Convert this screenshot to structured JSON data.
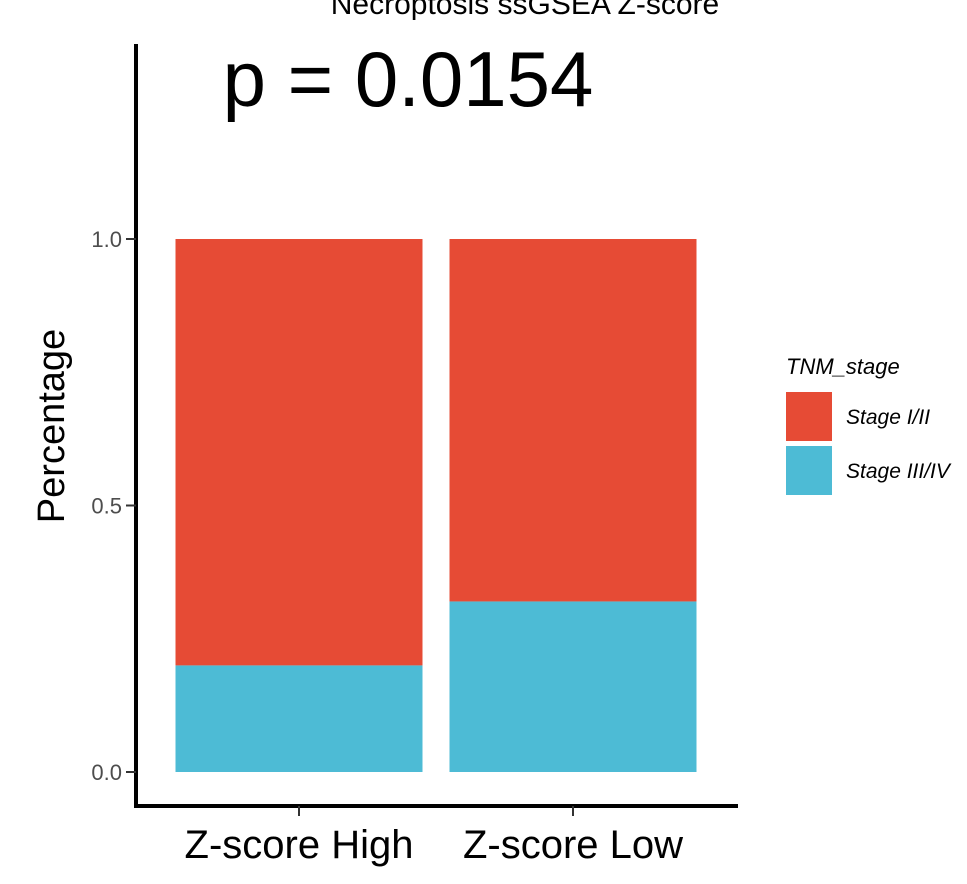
{
  "chart_data": {
    "type": "bar",
    "stacked": true,
    "title": "Necroptosis ssGSEA Z-score",
    "annotation": "p = 0.0154",
    "xlabel": "",
    "ylabel": "Percentage",
    "ylim": [
      0,
      1
    ],
    "yticks": [
      "0.0",
      "0.5",
      "1.0"
    ],
    "categories": [
      "Z-score High",
      "Z-score Low"
    ],
    "legend": {
      "title": "TNM_stage",
      "position": "right"
    },
    "series": [
      {
        "name": "Stage III/IV",
        "values": [
          0.2,
          0.32
        ],
        "color": "#4DBBD5"
      },
      {
        "name": "Stage I/II",
        "values": [
          0.8,
          0.68
        ],
        "color": "#E64B35"
      }
    ],
    "grid": false
  }
}
